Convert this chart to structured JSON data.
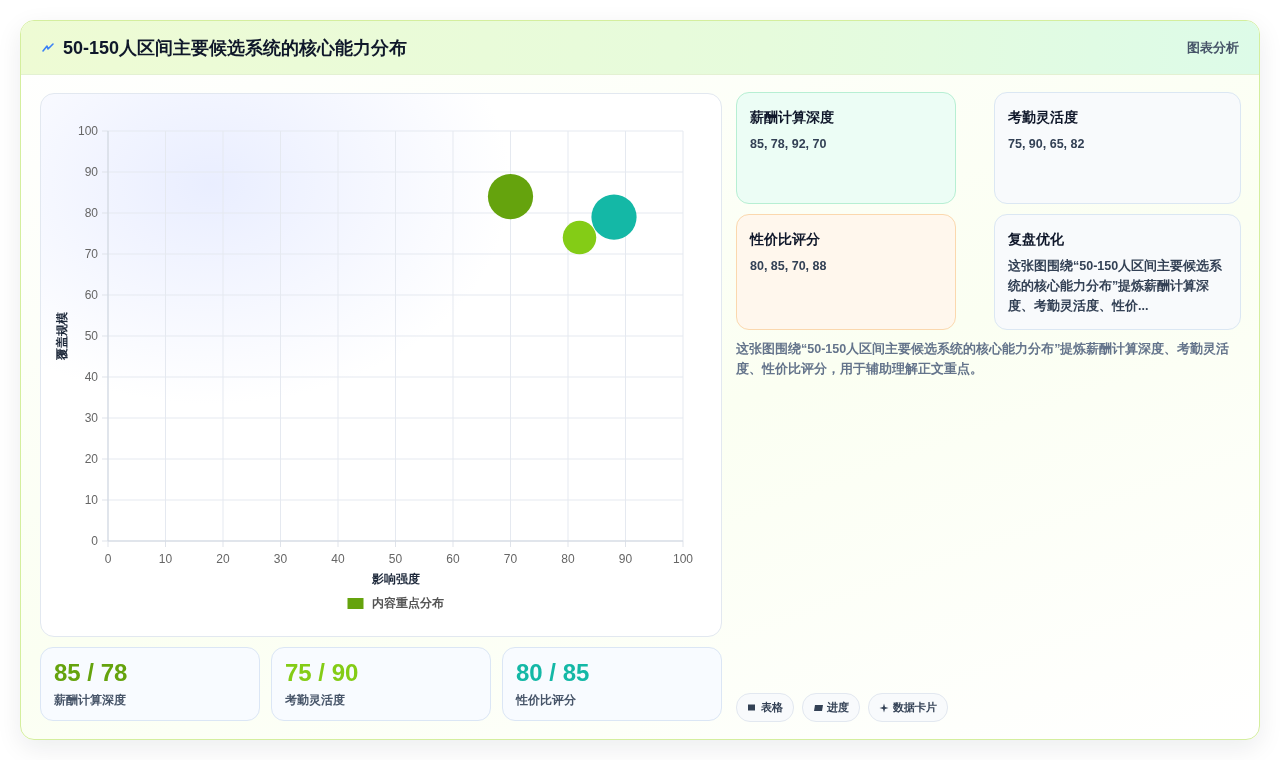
{
  "chart_data": {
    "type": "bubble",
    "title": "50-150人区间主要候选系统的核心能力分布",
    "xlabel": "影响强度",
    "ylabel": "覆盖规模",
    "series": [
      {
        "name": "内容重点分布",
        "color": "#65a30d",
        "x": [
          70,
          82,
          88
        ],
        "values": [
          84,
          74,
          79
        ],
        "sizes": [
          1,
          0.55,
          1
        ],
        "colors": [
          "#65a30d",
          "#84cc16",
          "#14b8a6"
        ]
      }
    ],
    "xlim": [
      0,
      100
    ],
    "ylim": [
      0,
      100
    ],
    "xticks": [
      0,
      10,
      20,
      30,
      40,
      50,
      60,
      70,
      80,
      90,
      100
    ],
    "yticks": [
      0,
      10,
      20,
      30,
      40,
      50,
      60,
      70,
      80,
      90,
      100
    ],
    "grid": true,
    "legend": "bottom",
    "annotations": [
      "图表分析",
      "薪酬计算深度",
      "85, 78, 92, 70",
      "考勤灵活度",
      "75, 90, 65, 82",
      "性价比评分",
      "80, 85, 70, 88",
      "复盘优化",
      "这张图围绕“50-150人区间主要候选系统的核心能力分布”提炼薪酬计算深度、考勤灵活度、性价...",
      "这张图围绕“50-150人区间主要候选系统的核心能力分布”提炼薪酬计算深度、考勤灵活度、性价比评分，用于辅助理解正文重点。",
      "85 / 78",
      "薪酬计算深度",
      "75 / 90",
      "考勤灵活度",
      "80 / 85",
      "性价比评分",
      "表格",
      "进度",
      "数据卡片"
    ]
  }
}
